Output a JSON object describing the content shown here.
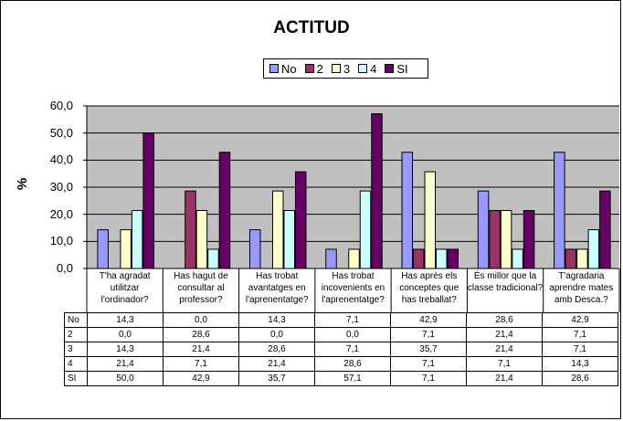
{
  "chart_data": {
    "type": "bar",
    "title": "ACTITUD",
    "ylabel": "%",
    "ylim": [
      0,
      60
    ],
    "yticks": [
      "0,0",
      "10,0",
      "20,0",
      "30,0",
      "40,0",
      "50,0",
      "60,0"
    ],
    "grid": true,
    "legend_position": "top",
    "categories": [
      "T'ha agradat utilitzar l'ordinador?",
      "Has hagut de consultar al professor?",
      "Has trobat avantatges en l'aprenentatge?",
      "Has trobat incovenients en l'aprenentatge?",
      "Has après els conceptes que has treballat?",
      "És millor que la classe tradicional?",
      "T'agradaria aprendre mates amb Desca.?"
    ],
    "series": [
      {
        "name": "No",
        "color": "#9999ff",
        "values": [
          14.3,
          0.0,
          14.3,
          7.1,
          42.9,
          28.6,
          42.9
        ],
        "labels": [
          "14,3",
          "0,0",
          "14,3",
          "7,1",
          "42,9",
          "28,6",
          "42,9"
        ]
      },
      {
        "name": "2",
        "color": "#993366",
        "values": [
          0.0,
          28.6,
          0.0,
          0.0,
          7.1,
          21.4,
          7.1
        ],
        "labels": [
          "0,0",
          "28,6",
          "0,0",
          "0,0",
          "7,1",
          "21,4",
          "7,1"
        ]
      },
      {
        "name": "3",
        "color": "#ffffcc",
        "values": [
          14.3,
          21.4,
          28.6,
          7.1,
          35.7,
          21.4,
          7.1
        ],
        "labels": [
          "14,3",
          "21,4",
          "28,6",
          "7,1",
          "35,7",
          "21,4",
          "7,1"
        ]
      },
      {
        "name": "4",
        "color": "#ccffff",
        "values": [
          21.4,
          7.1,
          21.4,
          28.6,
          7.1,
          7.1,
          14.3
        ],
        "labels": [
          "21,4",
          "7,1",
          "21,4",
          "28,6",
          "7,1",
          "7,1",
          "14,3"
        ]
      },
      {
        "name": "SI",
        "color": "#660066",
        "values": [
          50.0,
          42.9,
          35.7,
          57.1,
          7.1,
          21.4,
          28.6
        ],
        "labels": [
          "50,0",
          "42,9",
          "35,7",
          "57,1",
          "7,1",
          "21,4",
          "28,6"
        ]
      }
    ]
  }
}
